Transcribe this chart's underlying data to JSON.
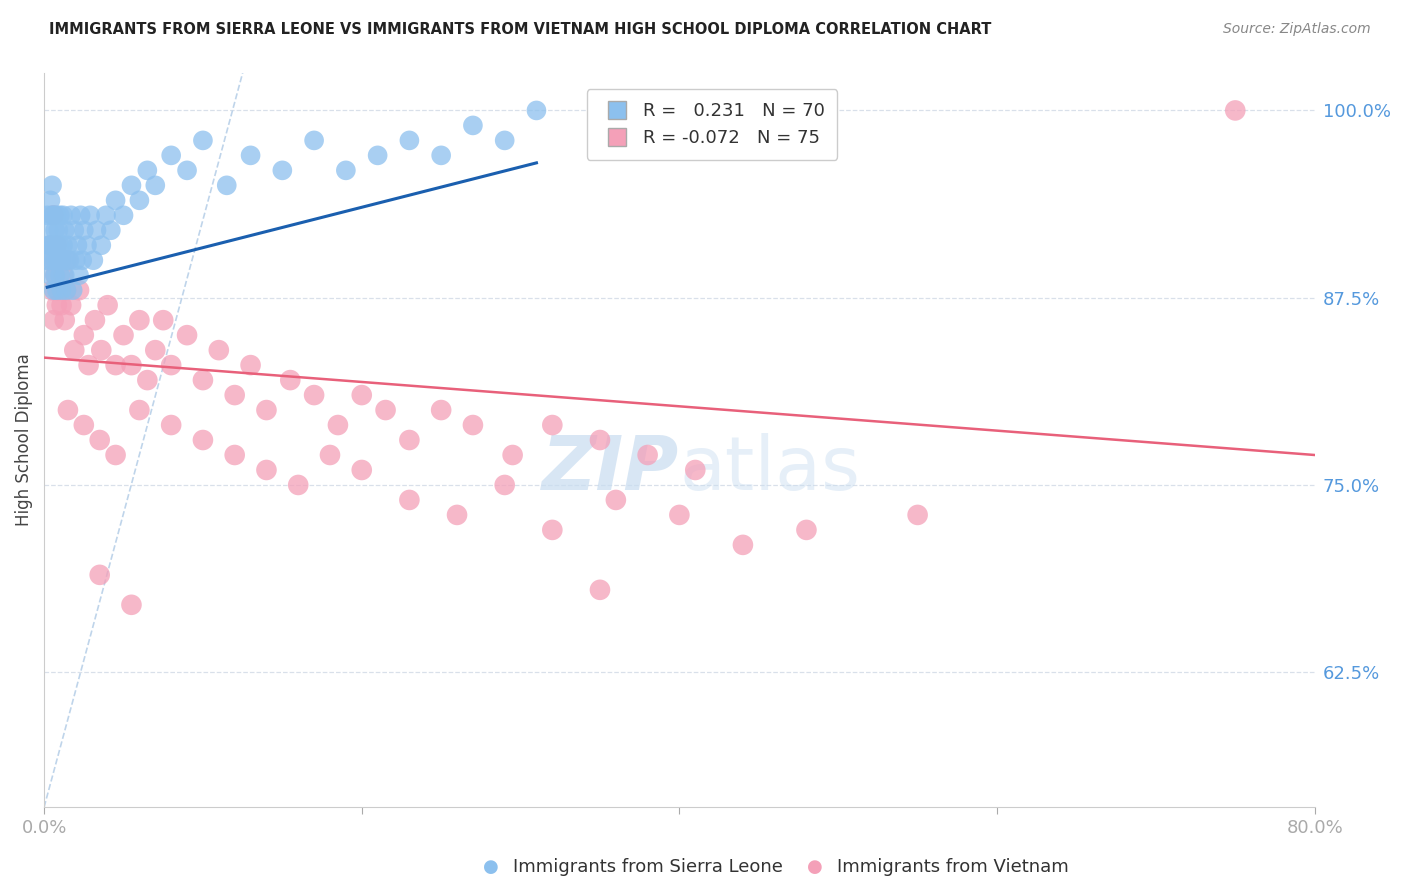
{
  "title": "IMMIGRANTS FROM SIERRA LEONE VS IMMIGRANTS FROM VIETNAM HIGH SCHOOL DIPLOMA CORRELATION CHART",
  "source": "Source: ZipAtlas.com",
  "ylabel": "High School Diploma",
  "xlabel_legend1": "Immigrants from Sierra Leone",
  "xlabel_legend2": "Immigrants from Vietnam",
  "legend_R1": "R =   0.231",
  "legend_N1": "N = 70",
  "legend_R2": "R = -0.072",
  "legend_N2": "N = 75",
  "xmin": 0.0,
  "xmax": 0.8,
  "ymin": 0.535,
  "ymax": 1.025,
  "yticks": [
    0.625,
    0.75,
    0.875,
    1.0
  ],
  "ytick_labels": [
    "62.5%",
    "75.0%",
    "87.5%",
    "100.0%"
  ],
  "xticks": [
    0.0,
    0.2,
    0.4,
    0.6,
    0.8
  ],
  "xtick_labels": [
    "0.0%",
    "",
    "",
    "",
    "80.0%"
  ],
  "color_sierra": "#8CC0EE",
  "color_vietnam": "#F4A0B8",
  "color_trend_sierra": "#1A5FAF",
  "color_trend_vietnam": "#E8607A",
  "color_ref_line": "#B8D0E8",
  "color_grid": "#D5DDE8",
  "color_ytick_label": "#5599DD",
  "color_xtick_label": "#5599DD",
  "watermark_color": "#C8DCF0",
  "background_color": "#FFFFFF",
  "sierra_x": [
    0.002,
    0.002,
    0.003,
    0.003,
    0.004,
    0.004,
    0.004,
    0.005,
    0.005,
    0.005,
    0.006,
    0.006,
    0.006,
    0.007,
    0.007,
    0.007,
    0.008,
    0.008,
    0.008,
    0.009,
    0.009,
    0.01,
    0.01,
    0.01,
    0.011,
    0.011,
    0.012,
    0.012,
    0.013,
    0.013,
    0.014,
    0.014,
    0.015,
    0.016,
    0.017,
    0.018,
    0.019,
    0.02,
    0.021,
    0.022,
    0.023,
    0.024,
    0.025,
    0.027,
    0.029,
    0.031,
    0.033,
    0.036,
    0.039,
    0.042,
    0.045,
    0.05,
    0.055,
    0.06,
    0.065,
    0.07,
    0.08,
    0.09,
    0.1,
    0.115,
    0.13,
    0.15,
    0.17,
    0.19,
    0.21,
    0.23,
    0.25,
    0.27,
    0.29,
    0.31
  ],
  "sierra_y": [
    0.9,
    0.93,
    0.92,
    0.91,
    0.94,
    0.91,
    0.89,
    0.93,
    0.9,
    0.95,
    0.91,
    0.93,
    0.88,
    0.92,
    0.89,
    0.9,
    0.93,
    0.88,
    0.91,
    0.9,
    0.92,
    0.89,
    0.91,
    0.93,
    0.9,
    0.88,
    0.91,
    0.93,
    0.89,
    0.92,
    0.9,
    0.88,
    0.91,
    0.9,
    0.93,
    0.88,
    0.92,
    0.9,
    0.91,
    0.89,
    0.93,
    0.9,
    0.92,
    0.91,
    0.93,
    0.9,
    0.92,
    0.91,
    0.93,
    0.92,
    0.94,
    0.93,
    0.95,
    0.94,
    0.96,
    0.95,
    0.97,
    0.96,
    0.98,
    0.95,
    0.97,
    0.96,
    0.98,
    0.96,
    0.97,
    0.98,
    0.97,
    0.99,
    0.98,
    1.0
  ],
  "vietnam_x": [
    0.003,
    0.004,
    0.005,
    0.006,
    0.006,
    0.007,
    0.008,
    0.008,
    0.009,
    0.01,
    0.011,
    0.012,
    0.013,
    0.014,
    0.015,
    0.017,
    0.019,
    0.022,
    0.025,
    0.028,
    0.032,
    0.036,
    0.04,
    0.045,
    0.05,
    0.055,
    0.06,
    0.065,
    0.07,
    0.075,
    0.08,
    0.09,
    0.1,
    0.11,
    0.12,
    0.13,
    0.14,
    0.155,
    0.17,
    0.185,
    0.2,
    0.215,
    0.23,
    0.25,
    0.27,
    0.295,
    0.32,
    0.35,
    0.38,
    0.41,
    0.015,
    0.025,
    0.035,
    0.045,
    0.06,
    0.08,
    0.1,
    0.12,
    0.14,
    0.16,
    0.18,
    0.2,
    0.23,
    0.26,
    0.29,
    0.32,
    0.36,
    0.4,
    0.44,
    0.48,
    0.035,
    0.055,
    0.35,
    0.55,
    0.75
  ],
  "vietnam_y": [
    0.9,
    0.91,
    0.88,
    0.93,
    0.86,
    0.89,
    0.91,
    0.87,
    0.88,
    0.9,
    0.87,
    0.89,
    0.86,
    0.88,
    0.9,
    0.87,
    0.84,
    0.88,
    0.85,
    0.83,
    0.86,
    0.84,
    0.87,
    0.83,
    0.85,
    0.83,
    0.86,
    0.82,
    0.84,
    0.86,
    0.83,
    0.85,
    0.82,
    0.84,
    0.81,
    0.83,
    0.8,
    0.82,
    0.81,
    0.79,
    0.81,
    0.8,
    0.78,
    0.8,
    0.79,
    0.77,
    0.79,
    0.78,
    0.77,
    0.76,
    0.8,
    0.79,
    0.78,
    0.77,
    0.8,
    0.79,
    0.78,
    0.77,
    0.76,
    0.75,
    0.77,
    0.76,
    0.74,
    0.73,
    0.75,
    0.72,
    0.74,
    0.73,
    0.71,
    0.72,
    0.69,
    0.67,
    0.68,
    0.73,
    1.0
  ],
  "sierra_trend_x": [
    0.002,
    0.31
  ],
  "sierra_trend_y": [
    0.882,
    0.965
  ],
  "vietnam_trend_x": [
    0.0,
    0.8
  ],
  "vietnam_trend_y": [
    0.835,
    0.77
  ],
  "ref_line_x": [
    0.0,
    0.125
  ],
  "ref_line_y": [
    0.535,
    1.025
  ]
}
